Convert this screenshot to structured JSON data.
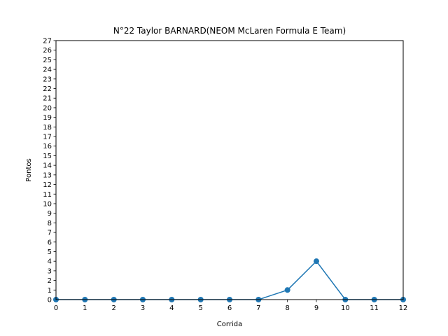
{
  "chart_data": {
    "type": "line",
    "title": "N°22 Taylor BARNARD(NEOM McLaren Formula E Team)",
    "xlabel": "Corrida",
    "ylabel": "Pontos",
    "xlim": [
      0,
      12
    ],
    "ylim": [
      0,
      27
    ],
    "xticks": [
      0,
      1,
      2,
      3,
      4,
      5,
      6,
      7,
      8,
      9,
      10,
      11,
      12
    ],
    "yticks": [
      0,
      1,
      2,
      3,
      4,
      5,
      6,
      7,
      8,
      9,
      10,
      11,
      12,
      13,
      14,
      15,
      16,
      17,
      18,
      19,
      20,
      21,
      22,
      23,
      24,
      25,
      26,
      27
    ],
    "grid": false,
    "legend": false,
    "series": [
      {
        "color": "#1f77b4",
        "marker": "circle",
        "x": [
          0,
          1,
          2,
          3,
          4,
          5,
          6,
          7,
          8,
          9,
          10,
          11,
          12
        ],
        "y": [
          0,
          0,
          0,
          0,
          0,
          0,
          0,
          0,
          1,
          4,
          0,
          0,
          0
        ]
      }
    ]
  }
}
